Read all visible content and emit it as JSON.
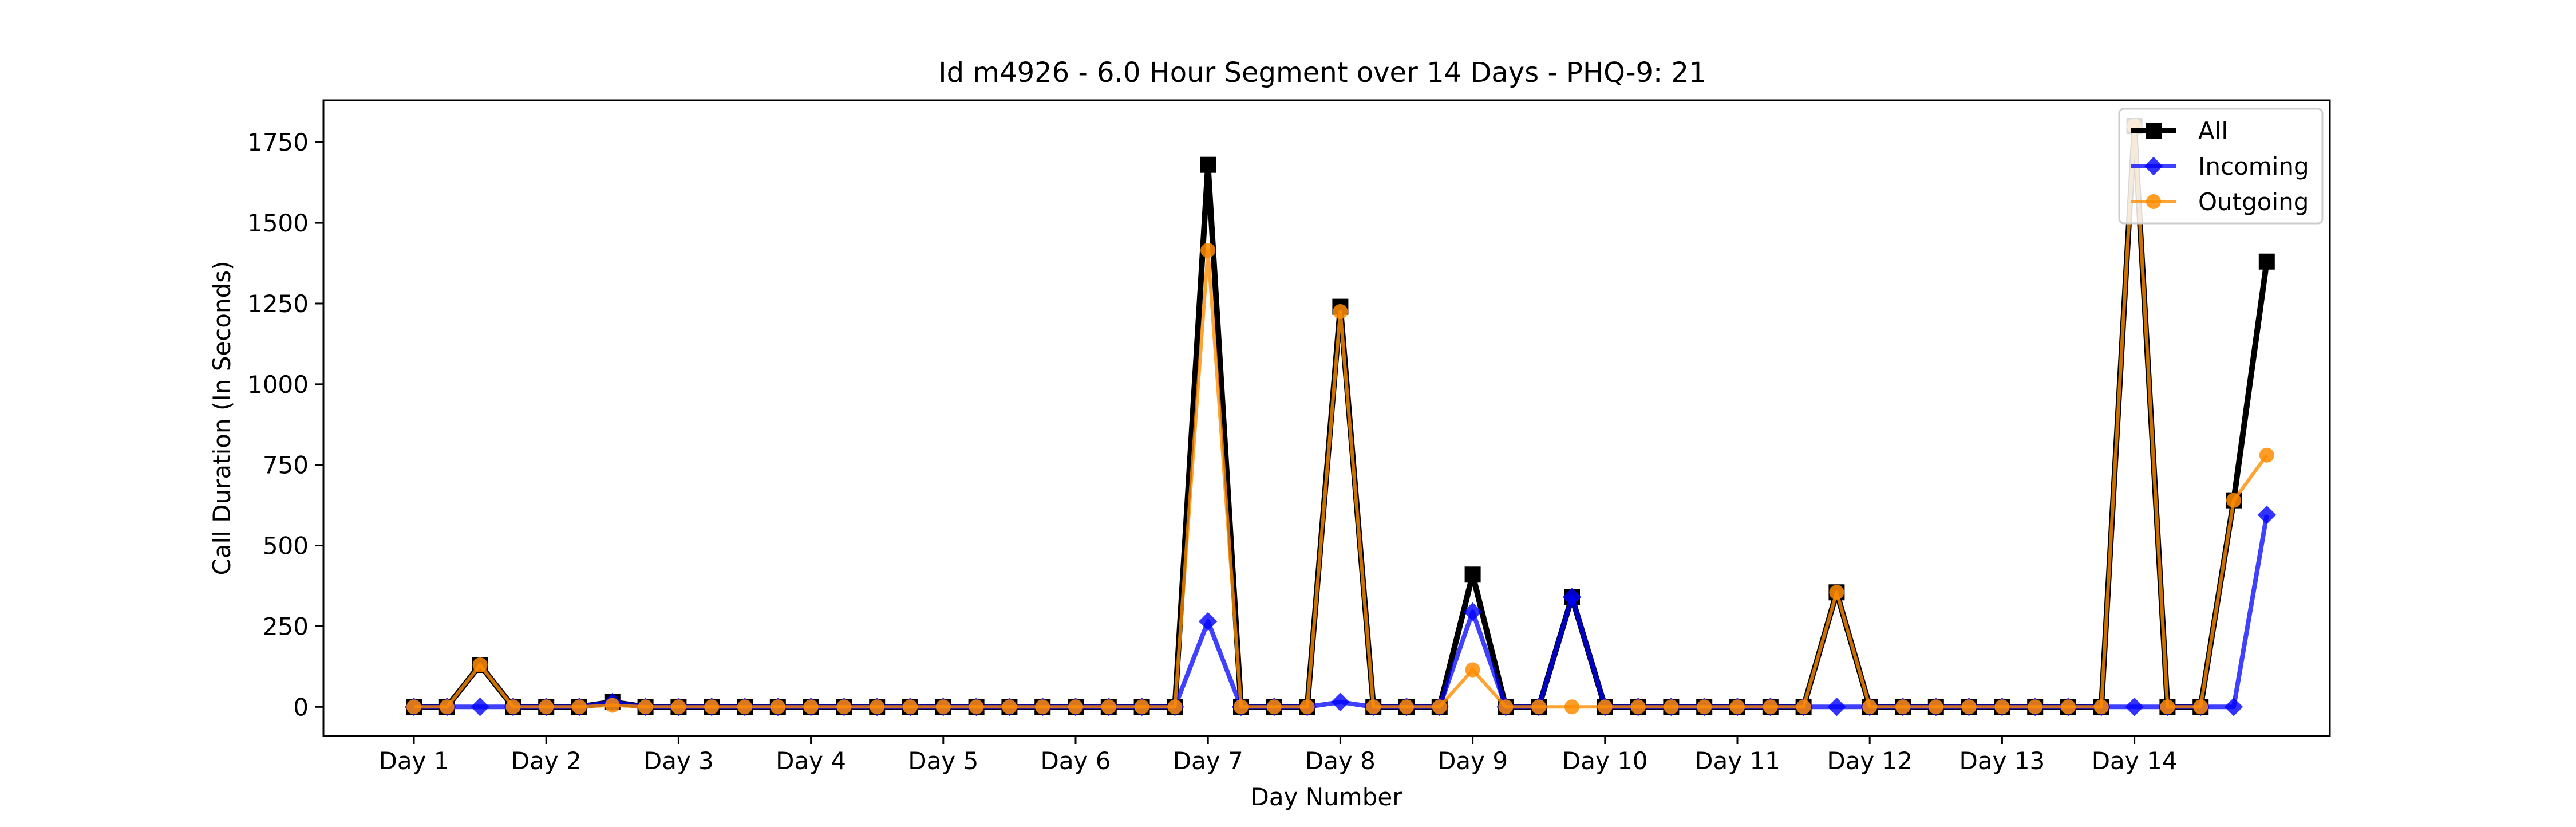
{
  "chart_data": {
    "type": "line",
    "title": "Id m4926 - 6.0 Hour Segment over 14 Days - PHQ-9: 21",
    "xlabel": "Day Number",
    "ylabel": "Call Duration (In Seconds)",
    "x_tick_labels": [
      "Day 1",
      "Day 2",
      "Day 3",
      "Day 4",
      "Day 5",
      "Day 6",
      "Day 7",
      "Day 8",
      "Day 9",
      "Day 10",
      "Day 11",
      "Day 12",
      "Day 13",
      "Day 14"
    ],
    "y_ticks": [
      0,
      250,
      500,
      750,
      1000,
      1250,
      1500,
      1750
    ],
    "ylim": [
      -90,
      1880
    ],
    "segments_per_day": 4,
    "grid": false,
    "legend": "top-right",
    "series": [
      {
        "name": "All",
        "color": "#000000",
        "marker": "square",
        "values": [
          0,
          0,
          130,
          0,
          0,
          0,
          15,
          0,
          0,
          0,
          0,
          0,
          0,
          0,
          0,
          0,
          0,
          0,
          0,
          0,
          0,
          0,
          0,
          0,
          1680,
          0,
          0,
          0,
          1240,
          0,
          0,
          0,
          410,
          0,
          0,
          340,
          0,
          0,
          0,
          0,
          0,
          0,
          0,
          355,
          0,
          0,
          0,
          0,
          0,
          0,
          0,
          0,
          1800,
          0,
          0,
          640,
          1380
        ]
      },
      {
        "name": "Incoming",
        "color": "#0000ff",
        "marker": "diamond",
        "values": [
          0,
          0,
          0,
          0,
          0,
          0,
          15,
          0,
          0,
          0,
          0,
          0,
          0,
          0,
          0,
          0,
          0,
          0,
          0,
          0,
          0,
          0,
          0,
          0,
          265,
          0,
          0,
          0,
          15,
          0,
          0,
          0,
          295,
          0,
          0,
          340,
          0,
          0,
          0,
          0,
          0,
          0,
          0,
          0,
          0,
          0,
          0,
          0,
          0,
          0,
          0,
          0,
          0,
          0,
          0,
          0,
          595
        ]
      },
      {
        "name": "Outgoing",
        "color": "#ff8c00",
        "marker": "circle",
        "values": [
          0,
          0,
          130,
          0,
          0,
          0,
          5,
          0,
          0,
          0,
          0,
          0,
          0,
          0,
          0,
          0,
          0,
          0,
          0,
          0,
          0,
          0,
          0,
          0,
          1415,
          0,
          0,
          0,
          1225,
          0,
          0,
          0,
          115,
          0,
          0,
          0,
          0,
          0,
          0,
          0,
          0,
          0,
          0,
          355,
          0,
          0,
          0,
          0,
          0,
          0,
          0,
          0,
          1800,
          0,
          0,
          640,
          780
        ]
      }
    ]
  }
}
